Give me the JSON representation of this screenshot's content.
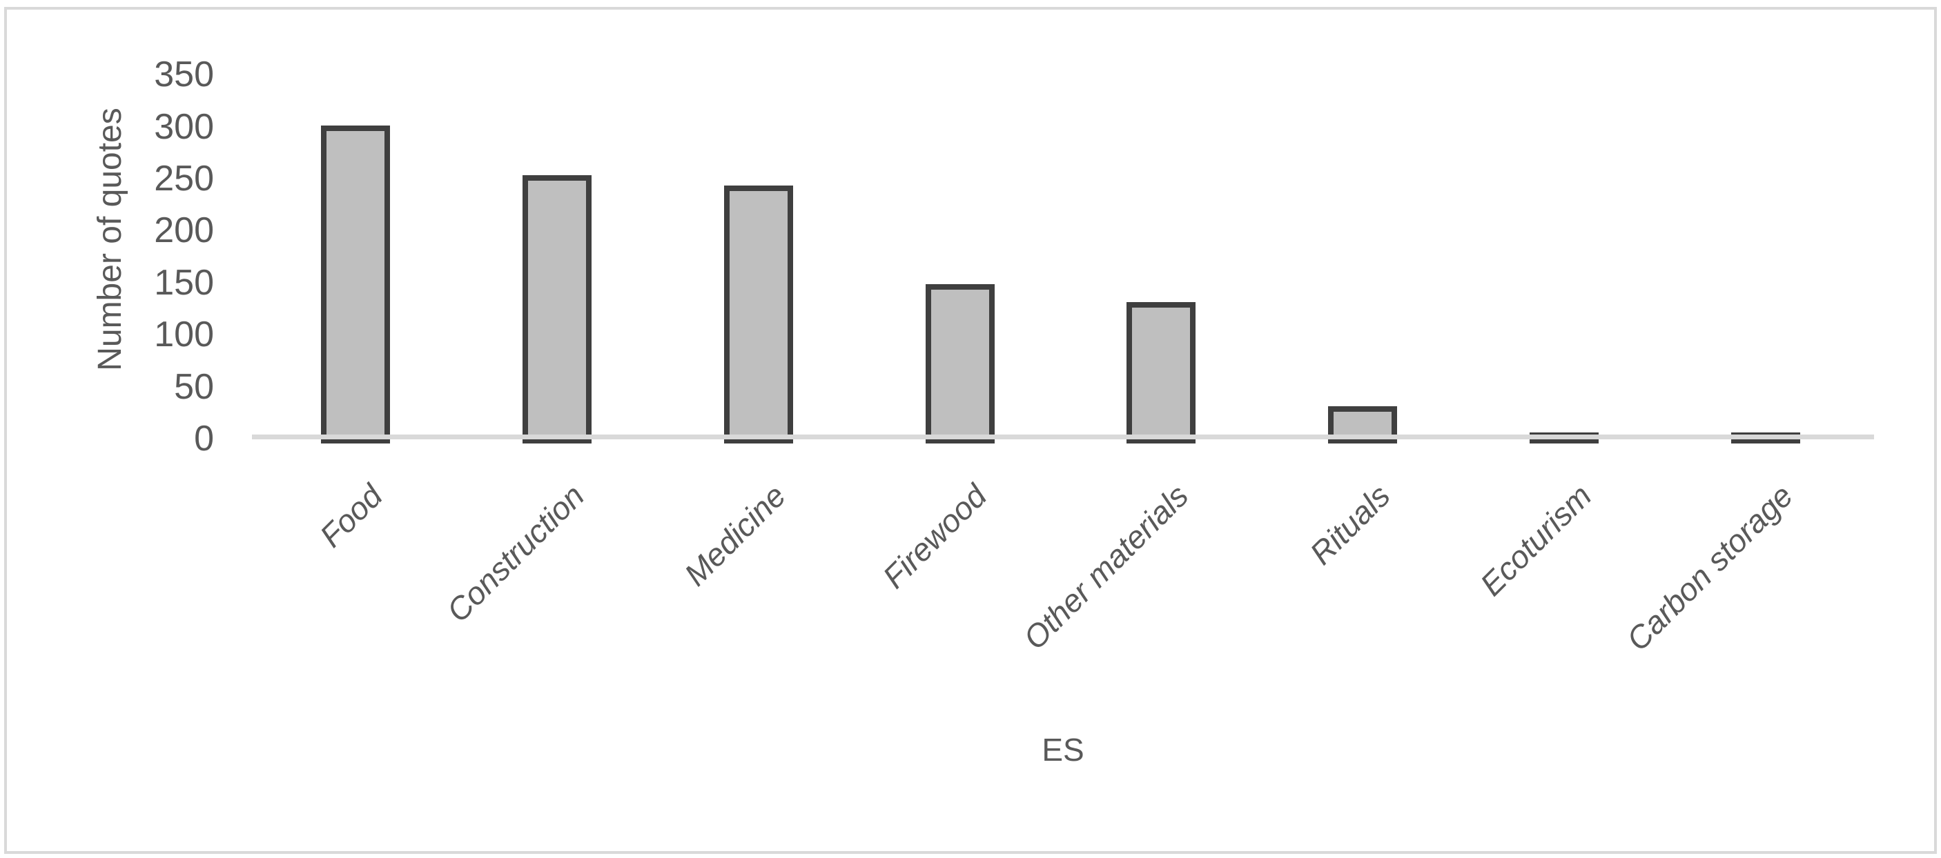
{
  "chart_data": {
    "type": "bar",
    "title": "",
    "categories": [
      "Food",
      "Construction",
      "Medicine",
      "Firewood",
      "Other materials",
      "Rituals",
      "Ecoturism",
      "Carbon storage"
    ],
    "values": [
      300,
      252,
      242,
      147,
      130,
      30,
      3,
      3
    ],
    "xlabel": "ES",
    "ylabel": "Number of quotes",
    "ylim": [
      0,
      350
    ],
    "yticks": [
      0,
      50,
      100,
      150,
      200,
      250,
      300,
      350
    ],
    "grid": false,
    "legend": "none",
    "colors": {
      "bar_fill": "#bfbfbf",
      "bar_border": "#3f3f3f",
      "axis_line": "#d9d9d9",
      "frame_border": "#d9d9d9",
      "text": "#595959"
    }
  }
}
